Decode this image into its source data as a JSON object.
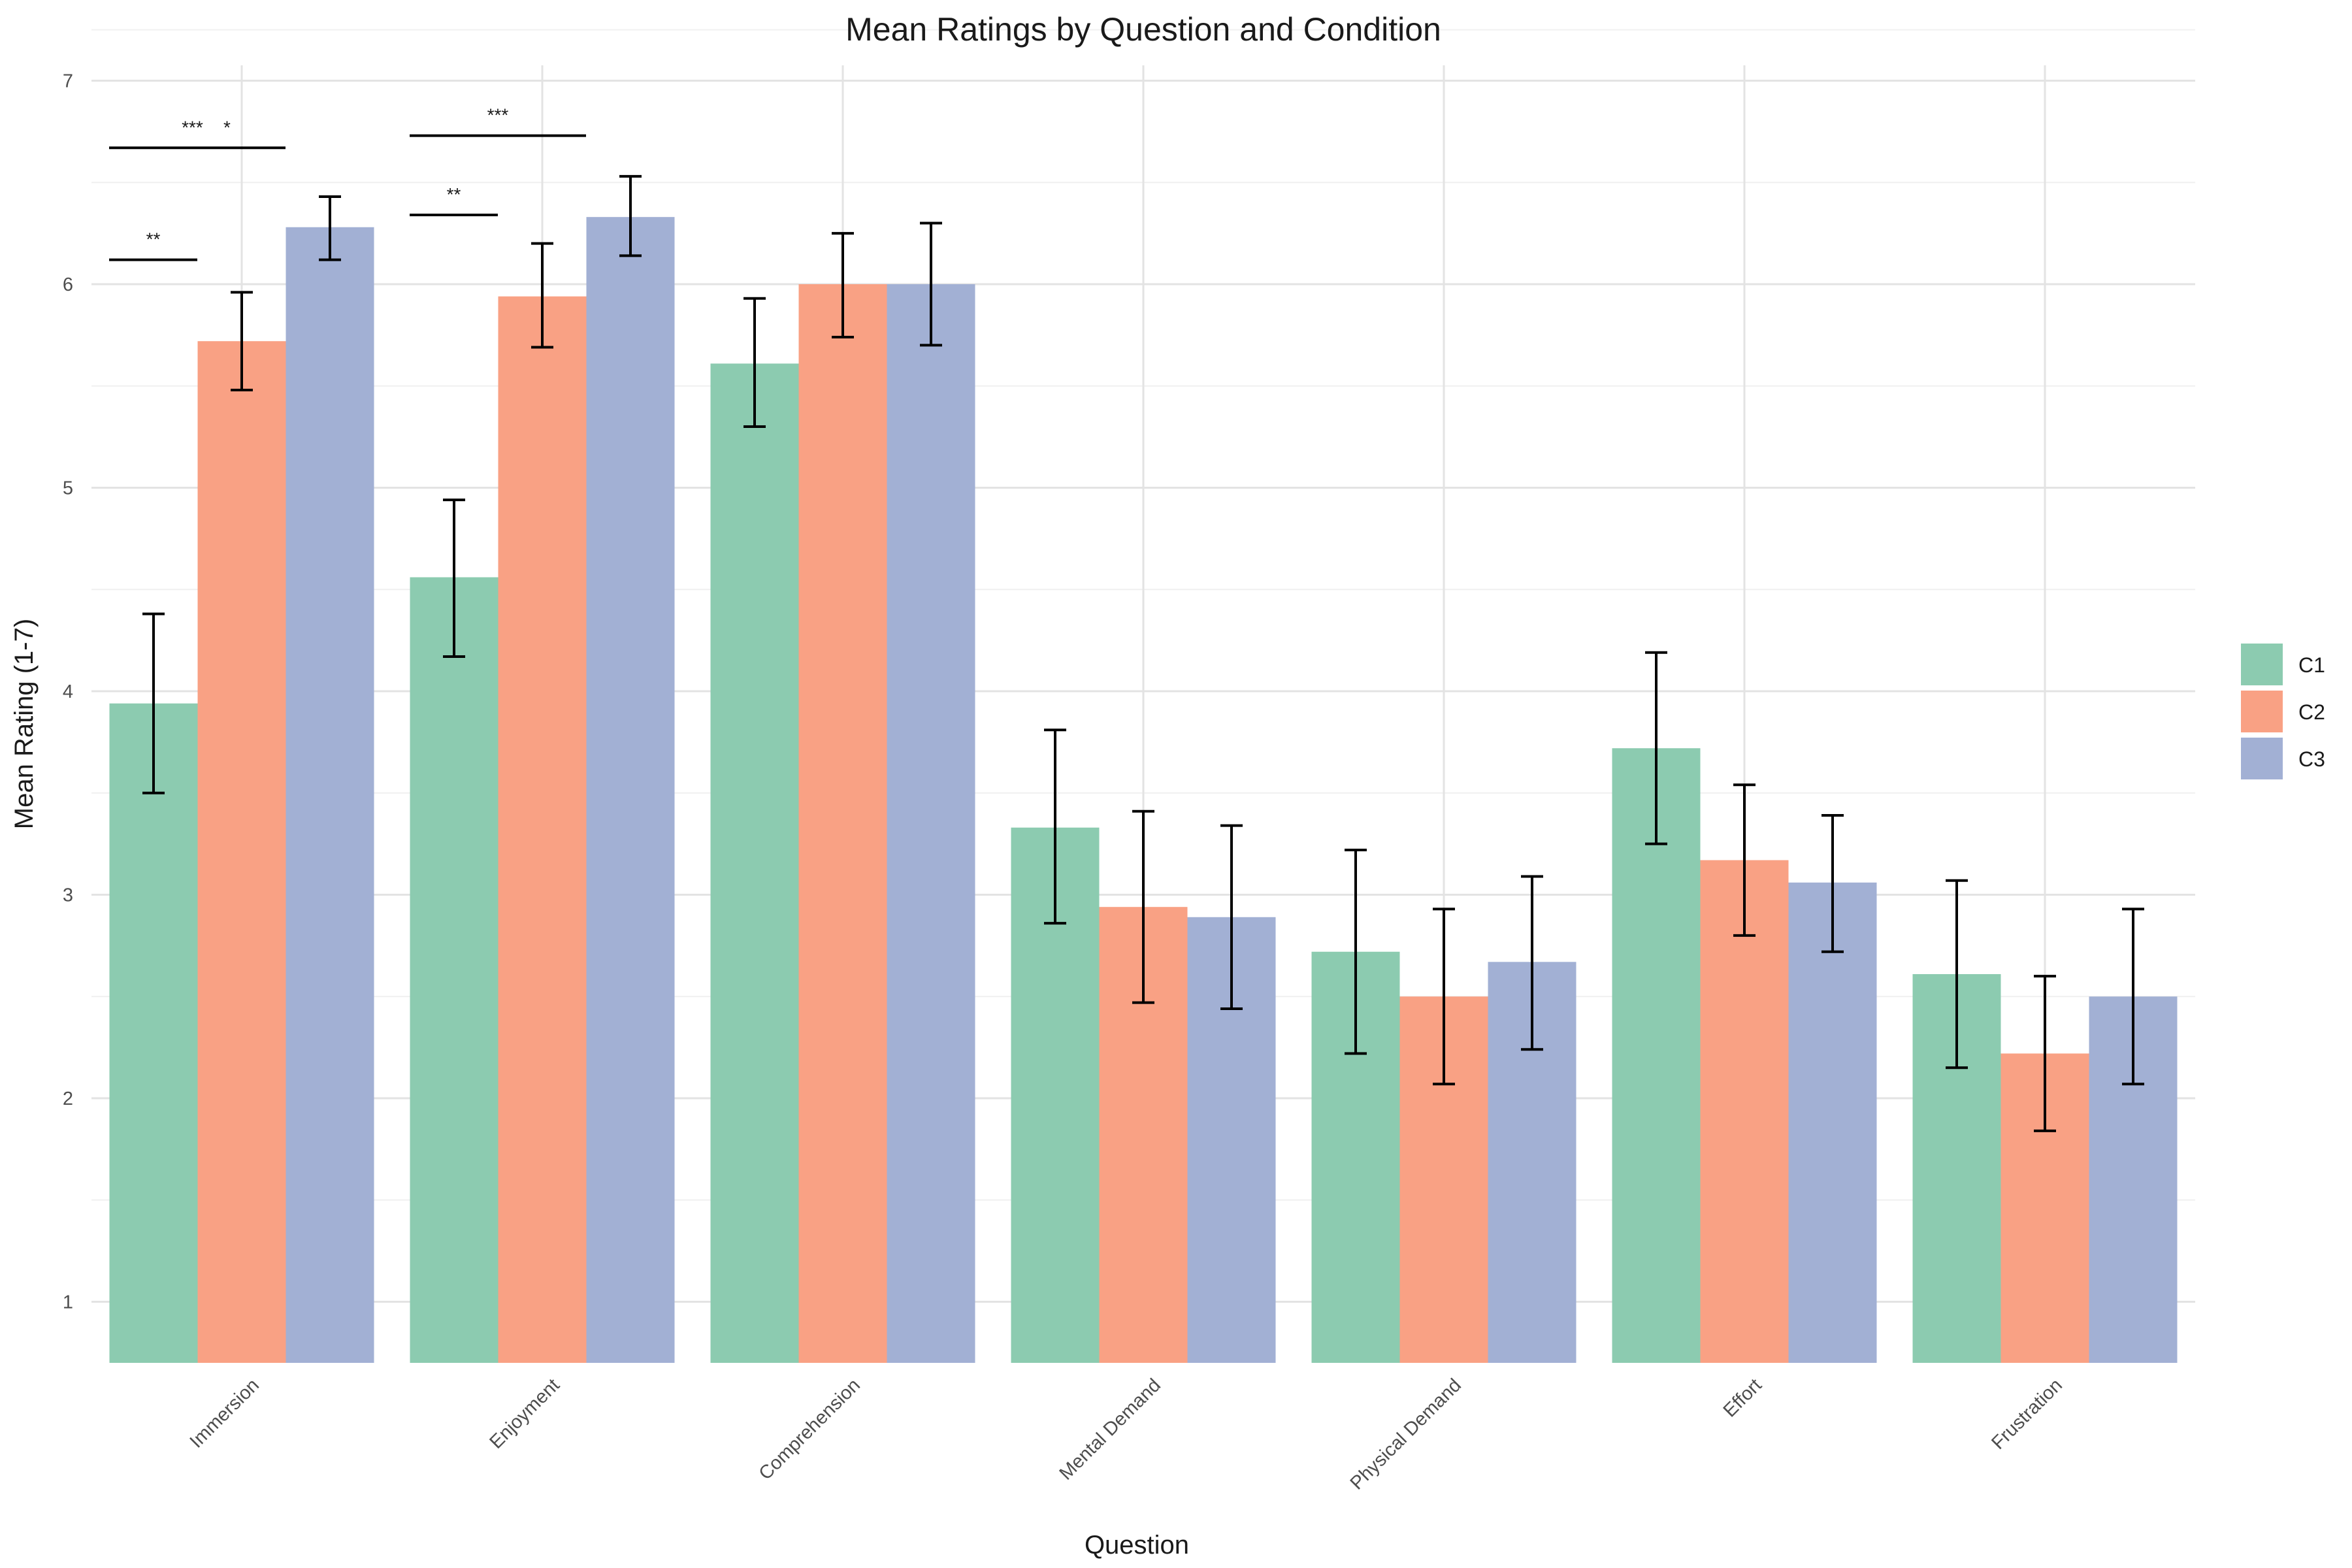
{
  "chart_data": {
    "type": "bar",
    "title": "Mean Ratings by Question and Condition",
    "xlabel": "Question",
    "ylabel": "Mean Rating (1-7)",
    "categories": [
      "Immersion",
      "Enjoyment",
      "Comprehension",
      "Mental Demand",
      "Physical Demand",
      "Effort",
      "Frustration"
    ],
    "ylim": [
      0.7,
      7.3
    ],
    "yticks": [
      "1",
      "2",
      "3",
      "4",
      "5",
      "6",
      "7"
    ],
    "grid": true,
    "legend_position": "right",
    "series": [
      {
        "name": "C1",
        "color": "#8ccbb0",
        "values": [
          3.94,
          4.56,
          5.61,
          3.33,
          2.72,
          3.72,
          2.61
        ],
        "error_low": [
          3.5,
          4.17,
          5.3,
          2.86,
          2.22,
          3.25,
          2.15
        ],
        "error_high": [
          4.38,
          4.94,
          5.93,
          3.81,
          3.22,
          4.19,
          3.07
        ]
      },
      {
        "name": "C2",
        "color": "#f9a184",
        "values": [
          5.72,
          5.94,
          6.0,
          2.94,
          2.5,
          3.17,
          2.22
        ],
        "error_low": [
          5.48,
          5.69,
          5.74,
          2.47,
          2.07,
          2.8,
          1.84
        ],
        "error_high": [
          5.96,
          6.2,
          6.25,
          3.41,
          2.93,
          3.54,
          2.6
        ]
      },
      {
        "name": "C3",
        "color": "#a2b0d4",
        "values": [
          6.28,
          6.33,
          6.0,
          2.89,
          2.67,
          3.06,
          2.5
        ],
        "error_low": [
          6.12,
          6.14,
          5.7,
          2.44,
          2.24,
          2.72,
          2.07
        ],
        "error_high": [
          6.43,
          6.53,
          6.3,
          3.34,
          3.09,
          3.39,
          2.93
        ]
      }
    ],
    "significance": [
      {
        "category": 0,
        "from": 0,
        "to": 1,
        "y": 6.12,
        "label": "**",
        "label_x_frac": 0.5
      },
      {
        "category": 0,
        "from": 0,
        "to": 2,
        "y": 6.67,
        "label": "***    *",
        "label_x_frac": 0.55
      },
      {
        "category": 1,
        "from": 0,
        "to": 1,
        "y": 6.34,
        "label": "**",
        "label_x_frac": 0.5
      },
      {
        "category": 1,
        "from": 0,
        "to": 2,
        "y": 6.73,
        "label": "***",
        "label_x_frac": 0.5
      }
    ]
  }
}
